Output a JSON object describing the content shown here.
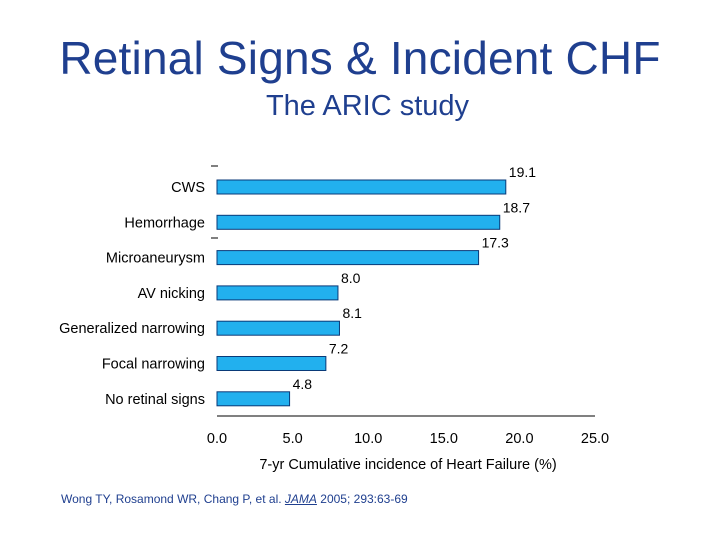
{
  "slide": {
    "title": "Retinal Signs & Incident CHF",
    "subtitle": "The ARIC study",
    "citation": {
      "authors": "Wong TY, Rosamond WR, Chang P, et al.",
      "journal": "JAMA",
      "details": "2005; 293:63-69"
    }
  },
  "colors": {
    "title": "#1f3f8f",
    "bar_fill": "#22b0ee",
    "bar_stroke": "#0a3a78"
  },
  "chart_data": {
    "type": "bar",
    "orientation": "horizontal",
    "categories": [
      "CWS",
      "Hemorrhage",
      "Microaneurysm",
      "AV nicking",
      "Generalized narrowing",
      "Focal narrowing",
      "No retinal signs"
    ],
    "values": [
      19.1,
      18.7,
      17.3,
      8.0,
      8.1,
      7.2,
      4.8
    ],
    "value_labels": [
      "19.1",
      "18.7",
      "17.3",
      "8.0",
      "8.1",
      "7.2",
      "4.8"
    ],
    "xlabel": "7-yr Cumulative incidence of Heart Failure (%)",
    "ylabel": "",
    "xlim": [
      0,
      25
    ],
    "xticks": [
      0,
      5,
      10,
      15,
      20,
      25
    ],
    "xtick_labels": [
      "0.0",
      "5.0",
      "10.0",
      "15.0",
      "20.0",
      "25.0"
    ],
    "grid": false,
    "legend": false
  }
}
